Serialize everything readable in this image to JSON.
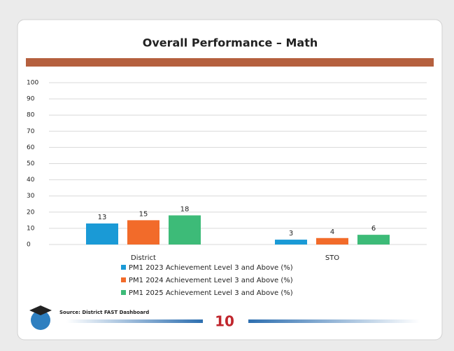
{
  "chart_data": {
    "type": "bar",
    "title": "Overall Performance – Math",
    "categories": [
      "District",
      "STO"
    ],
    "series": [
      {
        "name": "PM1 2023 Achievement Level 3 and Above (%)",
        "color": "#1a9ad6",
        "values": [
          13,
          3
        ]
      },
      {
        "name": "PM1 2024 Achievement Level 3 and Above (%)",
        "color": "#f26b2a",
        "values": [
          15,
          4
        ]
      },
      {
        "name": "PM1 2025 Achievement Level 3 and Above (%)",
        "color": "#3dbb78",
        "values": [
          18,
          6
        ]
      }
    ],
    "ylim": [
      0,
      100
    ],
    "yticks": [
      0,
      10,
      20,
      30,
      40,
      50,
      60,
      70,
      80,
      90,
      100
    ],
    "grid": true,
    "legend": "bottom",
    "source": "Source: District FAST Dashboard",
    "page_number": "10"
  }
}
